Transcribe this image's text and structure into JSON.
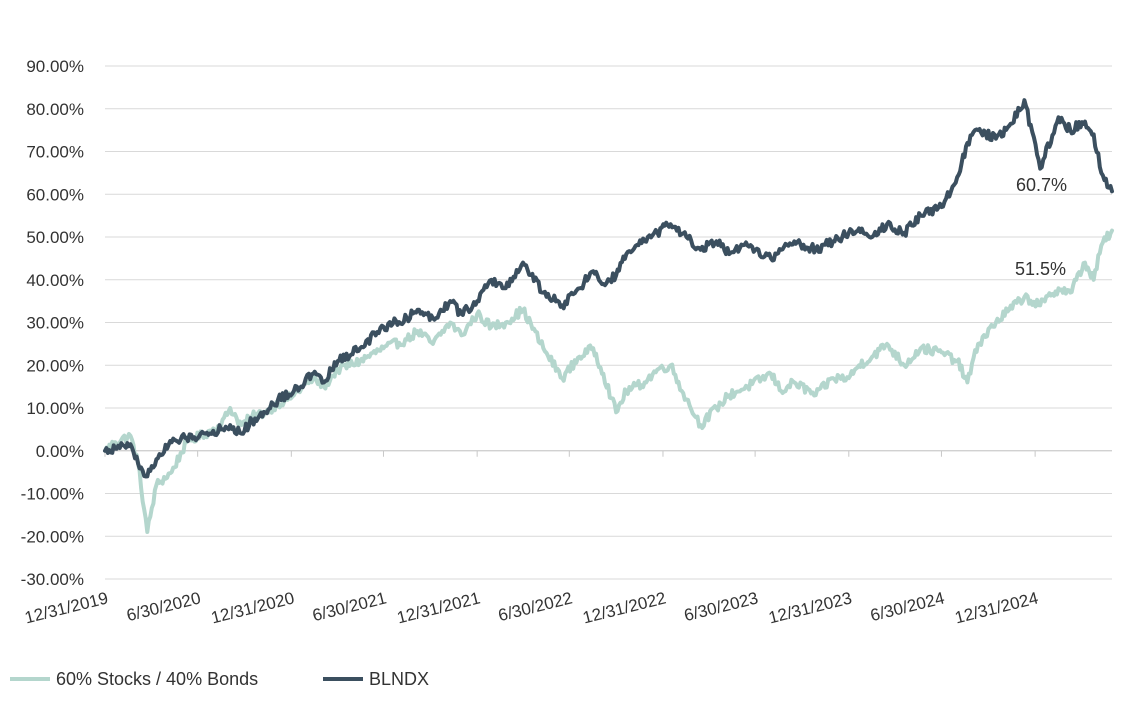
{
  "chart_data": {
    "type": "line",
    "title": "",
    "xlabel": "",
    "ylabel": "",
    "x_range": [
      "2019-12-31",
      "2025-05-31"
    ],
    "ylim": [
      -30,
      90
    ],
    "grid": true,
    "legend_position": "bottom-left",
    "y_ticks": [
      {
        "value": 90,
        "label": "90.00%"
      },
      {
        "value": 80,
        "label": "80.00%"
      },
      {
        "value": 70,
        "label": "70.00%"
      },
      {
        "value": 60,
        "label": "60.00%"
      },
      {
        "value": 50,
        "label": "50.00%"
      },
      {
        "value": 40,
        "label": "40.00%"
      },
      {
        "value": 30,
        "label": "30.00%"
      },
      {
        "value": 20,
        "label": "20.00%"
      },
      {
        "value": 10,
        "label": "10.00%"
      },
      {
        "value": 0,
        "label": "0.00%"
      },
      {
        "value": -10,
        "label": "-10.00%"
      },
      {
        "value": -20,
        "label": "-20.00%"
      },
      {
        "value": -30,
        "label": "-30.00%"
      }
    ],
    "x_ticks": [
      {
        "date": "2019-12-31",
        "label": "12/31/2019"
      },
      {
        "date": "2020-06-30",
        "label": "6/30/2020"
      },
      {
        "date": "2020-12-31",
        "label": "12/31/2020"
      },
      {
        "date": "2021-06-30",
        "label": "6/30/2021"
      },
      {
        "date": "2021-12-31",
        "label": "12/31/2021"
      },
      {
        "date": "2022-06-30",
        "label": "6/30/2022"
      },
      {
        "date": "2022-12-31",
        "label": "12/31/2022"
      },
      {
        "date": "2023-06-30",
        "label": "6/30/2023"
      },
      {
        "date": "2023-12-31",
        "label": "12/31/2023"
      },
      {
        "date": "2024-06-30",
        "label": "6/30/2024"
      },
      {
        "date": "2024-12-31",
        "label": "12/31/2024"
      }
    ],
    "series": [
      {
        "name": "60% Stocks / 40% Bonds",
        "color": "#b4d6cd",
        "points": [
          [
            "2019-12-31",
            0
          ],
          [
            "2020-01-20",
            2
          ],
          [
            "2020-02-19",
            3.5
          ],
          [
            "2020-03-05",
            -3
          ],
          [
            "2020-03-23",
            -19
          ],
          [
            "2020-04-10",
            -8
          ],
          [
            "2020-05-10",
            -5
          ],
          [
            "2020-06-08",
            2
          ],
          [
            "2020-07-15",
            4
          ],
          [
            "2020-08-15",
            6
          ],
          [
            "2020-09-02",
            10
          ],
          [
            "2020-09-24",
            6
          ],
          [
            "2020-10-15",
            8
          ],
          [
            "2020-11-10",
            9
          ],
          [
            "2020-12-05",
            11
          ],
          [
            "2021-01-05",
            13
          ],
          [
            "2021-02-12",
            17
          ],
          [
            "2021-03-05",
            15
          ],
          [
            "2021-04-01",
            19
          ],
          [
            "2021-05-15",
            21
          ],
          [
            "2021-06-30",
            24
          ],
          [
            "2021-08-15",
            26
          ],
          [
            "2021-09-05",
            28
          ],
          [
            "2021-10-05",
            25
          ],
          [
            "2021-11-08",
            30
          ],
          [
            "2021-11-30",
            27
          ],
          [
            "2021-12-31",
            32
          ],
          [
            "2022-01-28",
            29
          ],
          [
            "2022-02-25",
            30
          ],
          [
            "2022-03-31",
            33
          ],
          [
            "2022-05-10",
            24
          ],
          [
            "2022-06-16",
            17
          ],
          [
            "2022-07-20",
            22
          ],
          [
            "2022-08-16",
            24
          ],
          [
            "2022-09-05",
            18
          ],
          [
            "2022-09-30",
            9
          ],
          [
            "2022-10-20",
            14
          ],
          [
            "2022-11-25",
            16
          ],
          [
            "2022-12-20",
            19
          ],
          [
            "2023-01-15",
            20
          ],
          [
            "2023-02-15",
            12
          ],
          [
            "2023-03-15",
            6
          ],
          [
            "2023-04-15",
            10
          ],
          [
            "2023-05-10",
            13
          ],
          [
            "2023-06-15",
            15
          ],
          [
            "2023-07-31",
            18
          ],
          [
            "2023-08-20",
            14
          ],
          [
            "2023-09-15",
            16
          ],
          [
            "2023-10-27",
            13
          ],
          [
            "2023-11-30",
            17
          ],
          [
            "2023-12-31",
            17
          ],
          [
            "2024-01-20",
            20
          ],
          [
            "2024-02-15",
            22
          ],
          [
            "2024-03-15",
            25
          ],
          [
            "2024-04-18",
            20
          ],
          [
            "2024-05-20",
            24
          ],
          [
            "2024-06-30",
            23
          ],
          [
            "2024-07-31",
            21
          ],
          [
            "2024-08-20",
            16
          ],
          [
            "2024-09-10",
            25
          ],
          [
            "2024-10-15",
            30
          ],
          [
            "2024-11-10",
            33
          ],
          [
            "2024-12-10",
            36
          ],
          [
            "2025-01-10",
            34
          ],
          [
            "2025-02-15",
            38
          ],
          [
            "2025-03-10",
            37
          ],
          [
            "2025-04-08",
            44
          ],
          [
            "2025-04-25",
            40
          ],
          [
            "2025-05-10",
            48
          ],
          [
            "2025-05-31",
            51.5
          ]
        ]
      },
      {
        "name": "BLNDX",
        "color": "#3b4f5f",
        "points": [
          [
            "2019-12-31",
            0
          ],
          [
            "2020-01-20",
            0.5
          ],
          [
            "2020-02-19",
            1.5
          ],
          [
            "2020-03-05",
            -3
          ],
          [
            "2020-03-23",
            -6
          ],
          [
            "2020-04-10",
            -2
          ],
          [
            "2020-05-10",
            2
          ],
          [
            "2020-06-08",
            3
          ],
          [
            "2020-07-15",
            4
          ],
          [
            "2020-08-15",
            5
          ],
          [
            "2020-09-02",
            6
          ],
          [
            "2020-09-24",
            4
          ],
          [
            "2020-10-15",
            7
          ],
          [
            "2020-11-10",
            9
          ],
          [
            "2020-12-05",
            12
          ],
          [
            "2021-01-05",
            14
          ],
          [
            "2021-02-12",
            18
          ],
          [
            "2021-03-05",
            16
          ],
          [
            "2021-04-01",
            21
          ],
          [
            "2021-05-15",
            24
          ],
          [
            "2021-06-30",
            29
          ],
          [
            "2021-08-15",
            31
          ],
          [
            "2021-09-05",
            33
          ],
          [
            "2021-10-05",
            31
          ],
          [
            "2021-11-08",
            35
          ],
          [
            "2021-11-30",
            32
          ],
          [
            "2021-12-31",
            35
          ],
          [
            "2022-01-28",
            40
          ],
          [
            "2022-02-25",
            38
          ],
          [
            "2022-03-31",
            44
          ],
          [
            "2022-05-10",
            37
          ],
          [
            "2022-06-16",
            34
          ],
          [
            "2022-07-20",
            38
          ],
          [
            "2022-08-16",
            42
          ],
          [
            "2022-09-05",
            39
          ],
          [
            "2022-09-30",
            41
          ],
          [
            "2022-10-20",
            46
          ],
          [
            "2022-11-25",
            49
          ],
          [
            "2022-12-20",
            51
          ],
          [
            "2023-01-15",
            53
          ],
          [
            "2023-02-15",
            50
          ],
          [
            "2023-03-15",
            47
          ],
          [
            "2023-04-15",
            49
          ],
          [
            "2023-05-10",
            46
          ],
          [
            "2023-06-15",
            48
          ],
          [
            "2023-07-31",
            45
          ],
          [
            "2023-08-20",
            47
          ],
          [
            "2023-09-15",
            49
          ],
          [
            "2023-10-27",
            47
          ],
          [
            "2023-11-30",
            49
          ],
          [
            "2023-12-31",
            51
          ],
          [
            "2024-01-20",
            52
          ],
          [
            "2024-02-15",
            50
          ],
          [
            "2024-03-15",
            53
          ],
          [
            "2024-04-18",
            51
          ],
          [
            "2024-05-20",
            55
          ],
          [
            "2024-06-30",
            57
          ],
          [
            "2024-07-31",
            64
          ],
          [
            "2024-08-20",
            72
          ],
          [
            "2024-09-10",
            75
          ],
          [
            "2024-10-15",
            73
          ],
          [
            "2024-11-10",
            76
          ],
          [
            "2024-12-10",
            82
          ],
          [
            "2025-01-10",
            66
          ],
          [
            "2025-02-15",
            78
          ],
          [
            "2025-03-10",
            75
          ],
          [
            "2025-04-08",
            77
          ],
          [
            "2025-04-25",
            74
          ],
          [
            "2025-05-10",
            65
          ],
          [
            "2025-05-31",
            60.7
          ]
        ]
      }
    ],
    "annotations": [
      {
        "text": "60.7%",
        "series": "BLNDX"
      },
      {
        "text": "51.5%",
        "series": "60% Stocks / 40% Bonds"
      }
    ]
  }
}
